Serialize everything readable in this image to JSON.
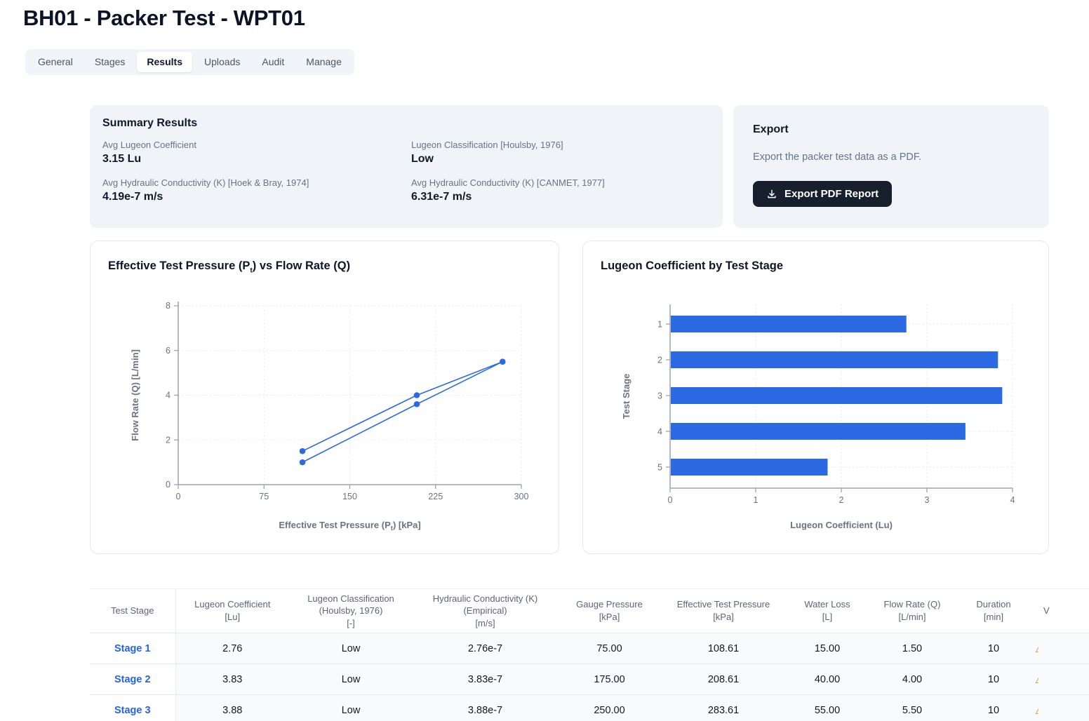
{
  "header": {
    "title": "BH01 - Packer Test - WPT01"
  },
  "tabs": {
    "items": [
      "General",
      "Stages",
      "Results",
      "Uploads",
      "Audit",
      "Manage"
    ],
    "active": "Results"
  },
  "summary": {
    "title": "Summary Results",
    "items": [
      {
        "label": "Avg Lugeon Coefficient",
        "value": "3.15 Lu"
      },
      {
        "label": "Lugeon Classification [Houlsby, 1976]",
        "value": "Low"
      },
      {
        "label": "Avg Hydraulic Conductivity (K) [Hoek & Bray, 1974]",
        "value": "4.19e-7 m/s"
      },
      {
        "label": "Avg Hydraulic Conductivity (K) [CANMET, 1977]",
        "value": "6.31e-7 m/s"
      }
    ]
  },
  "export": {
    "title": "Export",
    "description": "Export the packer test data as a PDF.",
    "button_label": "Export PDF Report",
    "button_icon": "download-icon"
  },
  "chart_data": [
    {
      "type": "line",
      "title_parts": [
        "Effective Test Pressure (P",
        "t",
        ") vs Flow Rate (Q)"
      ],
      "xlabel_parts": [
        "Effective Test Pressure (P",
        "t",
        ") [kPa]"
      ],
      "ylabel": "Flow Rate (Q) [L/min]",
      "xlim": [
        0,
        300
      ],
      "ylim": [
        0,
        8
      ],
      "xticks": [
        0,
        75,
        150,
        225,
        300
      ],
      "yticks": [
        0,
        2,
        4,
        6,
        8
      ],
      "grid": true,
      "legend": "none",
      "series": [
        {
          "name": "test-stages-path",
          "x": [
            108.61,
            208.61,
            283.61,
            208.61,
            108.61
          ],
          "y": [
            1.5,
            4.0,
            5.5,
            3.6,
            1.0
          ]
        }
      ]
    },
    {
      "type": "bar",
      "orientation": "horizontal",
      "title": "Lugeon Coefficient by Test Stage",
      "xlabel": "Lugeon Coefficient (Lu)",
      "ylabel": "Test Stage",
      "categories": [
        "1",
        "2",
        "3",
        "4",
        "5"
      ],
      "values": [
        2.76,
        3.83,
        3.88,
        3.45,
        1.84
      ],
      "xlim": [
        0,
        4
      ],
      "xticks": [
        0,
        1,
        2,
        3,
        4
      ],
      "grid": true,
      "legend": "none"
    }
  ],
  "table": {
    "columns": [
      {
        "lines": [
          "Test Stage"
        ]
      },
      {
        "lines": [
          "Lugeon Coefficient",
          "[Lu]"
        ]
      },
      {
        "lines": [
          "Lugeon Classification",
          "(Houlsby, 1976)",
          "[-]"
        ]
      },
      {
        "lines": [
          "Hydraulic Conductivity (K)",
          "(Empirical)",
          "[m/s]"
        ]
      },
      {
        "lines": [
          "Gauge Pressure",
          "[kPa]"
        ]
      },
      {
        "lines": [
          "Effective Test Pressure",
          "[kPa]"
        ]
      },
      {
        "lines": [
          "Water Loss",
          "[L]"
        ]
      },
      {
        "lines": [
          "Flow Rate (Q)",
          "[L/min]"
        ]
      },
      {
        "lines": [
          "Duration",
          "[min]"
        ]
      },
      {
        "lines": [
          "V"
        ],
        "clipped": true
      }
    ],
    "rows": [
      {
        "stage": "Stage 1",
        "values": [
          "2.76",
          "Low",
          "2.76e-7",
          "75.00",
          "108.61",
          "15.00",
          "1.50",
          "10"
        ],
        "clipped_icon": "warning-icon"
      },
      {
        "stage": "Stage 2",
        "values": [
          "3.83",
          "Low",
          "3.83e-7",
          "175.00",
          "208.61",
          "40.00",
          "4.00",
          "10"
        ],
        "clipped_icon": "warning-icon"
      },
      {
        "stage": "Stage 3",
        "values": [
          "3.88",
          "Low",
          "3.88e-7",
          "250.00",
          "283.61",
          "55.00",
          "5.50",
          "10"
        ],
        "clipped_icon": "warning-icon"
      }
    ]
  },
  "colors": {
    "accent_blue": "#2563eb",
    "chart_blue": "#2c6ae4",
    "dark_navy": "#0c1326",
    "button_bg": "#171e2e",
    "panel_bg": "#f0f4f8",
    "muted_text": "#64748b",
    "card_border": "#e2e8f0",
    "axis_gray": "#9ca3af",
    "tick_text": "#6b7280",
    "warning_orange": "#d97706"
  }
}
